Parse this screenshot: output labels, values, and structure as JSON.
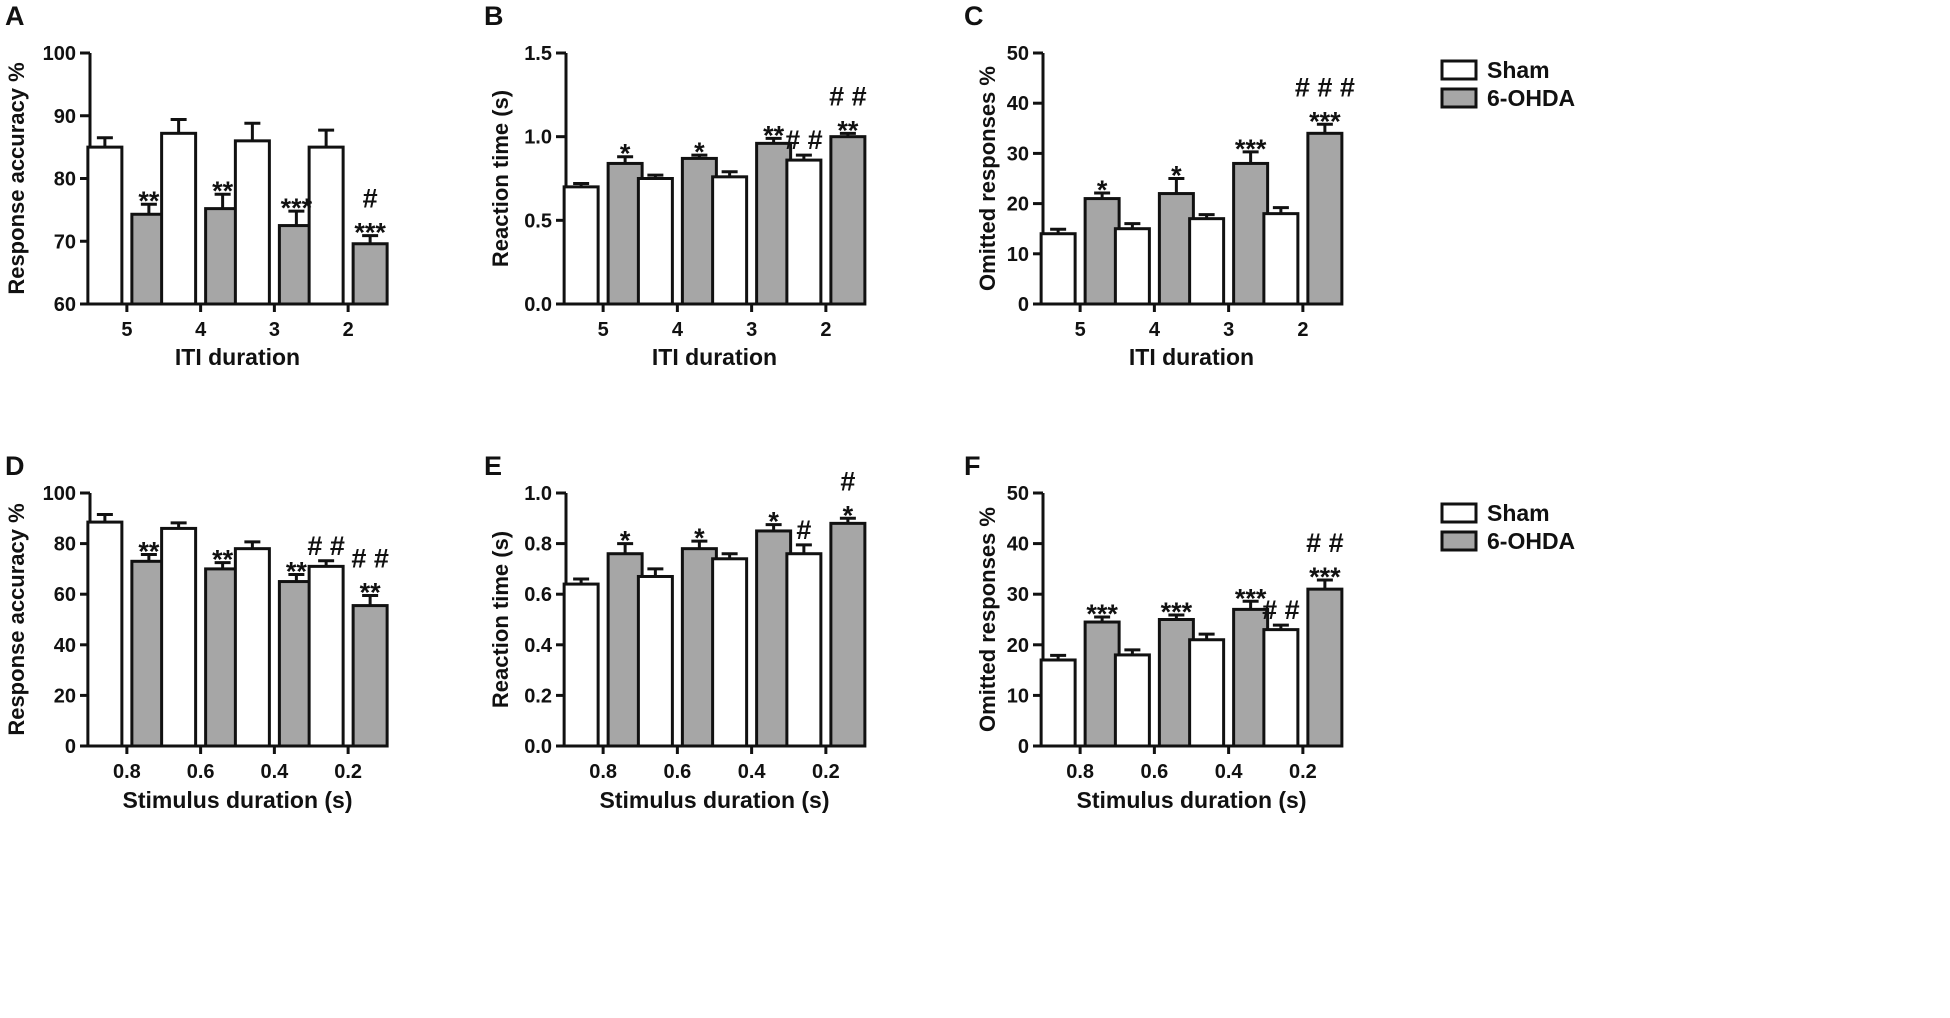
{
  "legend": {
    "items": [
      {
        "name": "Sham",
        "color": "#ffffff"
      },
      {
        "name": "6-OHDA",
        "color": "#a6a6a6"
      }
    ]
  },
  "chart_data": [
    {
      "panel": "A",
      "type": "bar",
      "xlabel": "ITI duration",
      "ylabel": "Response accuracy %",
      "ylim": [
        60,
        100
      ],
      "yticks": [
        "60",
        "70",
        "80",
        "90",
        "100"
      ],
      "categories": [
        "5",
        "4",
        "3",
        "2"
      ],
      "series": [
        {
          "name": "Sham",
          "values": [
            85,
            87.2,
            86,
            85
          ],
          "errors": [
            1.5,
            2.2,
            2.8,
            2.7
          ]
        },
        {
          "name": "6-OHDA",
          "values": [
            74.3,
            75.2,
            72.5,
            69.6
          ],
          "errors": [
            1.6,
            2.3,
            2.3,
            1.3
          ]
        }
      ],
      "annotations": [
        {
          "category": "5",
          "series": "6-OHDA",
          "lines": [
            "**"
          ]
        },
        {
          "category": "4",
          "series": "6-OHDA",
          "lines": [
            "**"
          ]
        },
        {
          "category": "3",
          "series": "6-OHDA",
          "lines": [
            "***"
          ]
        },
        {
          "category": "2",
          "series": "6-OHDA",
          "lines": [
            "#",
            "***"
          ]
        }
      ]
    },
    {
      "panel": "B",
      "type": "bar",
      "xlabel": "ITI duration",
      "ylabel": "Reaction time (s)",
      "ylim": [
        0,
        1.5
      ],
      "yticks": [
        "0.0",
        "0.5",
        "1.0",
        "1.5"
      ],
      "categories": [
        "5",
        "4",
        "3",
        "2"
      ],
      "series": [
        {
          "name": "Sham",
          "values": [
            0.7,
            0.75,
            0.76,
            0.86
          ],
          "errors": [
            0.02,
            0.02,
            0.03,
            0.03
          ]
        },
        {
          "name": "6-OHDA",
          "values": [
            0.84,
            0.87,
            0.96,
            1.0
          ],
          "errors": [
            0.04,
            0.02,
            0.03,
            0.02
          ]
        }
      ],
      "annotations": [
        {
          "category": "5",
          "series": "6-OHDA",
          "lines": [
            "*"
          ]
        },
        {
          "category": "4",
          "series": "6-OHDA",
          "lines": [
            "*"
          ]
        },
        {
          "category": "3",
          "series": "6-OHDA",
          "lines": [
            "**"
          ]
        },
        {
          "category": "2",
          "series": "Sham",
          "lines": [
            "# #"
          ]
        },
        {
          "category": "2",
          "series": "6-OHDA",
          "lines": [
            "# #",
            "**"
          ]
        }
      ]
    },
    {
      "panel": "C",
      "type": "bar",
      "xlabel": "ITI duration",
      "ylabel": "Omitted responses %",
      "ylim": [
        0,
        50
      ],
      "yticks": [
        "0",
        "10",
        "20",
        "30",
        "40",
        "50"
      ],
      "categories": [
        "5",
        "4",
        "3",
        "2"
      ],
      "series": [
        {
          "name": "Sham",
          "values": [
            14,
            15,
            17,
            18
          ],
          "errors": [
            0.9,
            1.0,
            0.8,
            1.2
          ]
        },
        {
          "name": "6-OHDA",
          "values": [
            21,
            22,
            28,
            34
          ],
          "errors": [
            1.1,
            3.0,
            2.3,
            1.8
          ]
        }
      ],
      "annotations": [
        {
          "category": "5",
          "series": "6-OHDA",
          "lines": [
            "*"
          ]
        },
        {
          "category": "4",
          "series": "6-OHDA",
          "lines": [
            "*"
          ]
        },
        {
          "category": "3",
          "series": "6-OHDA",
          "lines": [
            "***"
          ]
        },
        {
          "category": "2",
          "series": "6-OHDA",
          "lines": [
            "# # #",
            "***"
          ]
        }
      ]
    },
    {
      "panel": "D",
      "type": "bar",
      "xlabel": "Stimulus duration (s)",
      "ylabel": "Response accuracy %",
      "ylim": [
        0,
        100
      ],
      "yticks": [
        "0",
        "20",
        "40",
        "60",
        "80",
        "100"
      ],
      "categories": [
        "0.8",
        "0.6",
        "0.4",
        "0.2"
      ],
      "series": [
        {
          "name": "Sham",
          "values": [
            88.5,
            86,
            78,
            71
          ],
          "errors": [
            3.0,
            2.2,
            2.7,
            2.2
          ]
        },
        {
          "name": "6-OHDA",
          "values": [
            73,
            70,
            65,
            55.5
          ],
          "errors": [
            2.7,
            2.5,
            2.8,
            4.0
          ]
        }
      ],
      "annotations": [
        {
          "category": "0.8",
          "series": "6-OHDA",
          "lines": [
            "**"
          ]
        },
        {
          "category": "0.6",
          "series": "6-OHDA",
          "lines": [
            "**"
          ]
        },
        {
          "category": "0.4",
          "series": "6-OHDA",
          "lines": [
            "**"
          ]
        },
        {
          "category": "0.2",
          "series": "Sham",
          "lines": [
            "# #"
          ]
        },
        {
          "category": "0.2",
          "series": "6-OHDA",
          "lines": [
            "# #",
            "**"
          ]
        }
      ]
    },
    {
      "panel": "E",
      "type": "bar",
      "xlabel": "Stimulus duration (s)",
      "ylabel": "Reaction time (s)",
      "ylim": [
        0,
        1.0
      ],
      "yticks": [
        "0.0",
        "0.2",
        "0.4",
        "0.6",
        "0.8",
        "1.0"
      ],
      "categories": [
        "0.8",
        "0.6",
        "0.4",
        "0.2"
      ],
      "series": [
        {
          "name": "Sham",
          "values": [
            0.64,
            0.67,
            0.74,
            0.76
          ],
          "errors": [
            0.02,
            0.03,
            0.02,
            0.035
          ]
        },
        {
          "name": "6-OHDA",
          "values": [
            0.76,
            0.78,
            0.85,
            0.88
          ],
          "errors": [
            0.04,
            0.03,
            0.025,
            0.02
          ]
        }
      ],
      "annotations": [
        {
          "category": "0.8",
          "series": "6-OHDA",
          "lines": [
            "*"
          ]
        },
        {
          "category": "0.6",
          "series": "6-OHDA",
          "lines": [
            "*"
          ]
        },
        {
          "category": "0.4",
          "series": "6-OHDA",
          "lines": [
            "*"
          ]
        },
        {
          "category": "0.2",
          "series": "Sham",
          "lines": [
            "#"
          ]
        },
        {
          "category": "0.2",
          "series": "6-OHDA",
          "lines": [
            "#",
            "*"
          ]
        }
      ]
    },
    {
      "panel": "F",
      "type": "bar",
      "xlabel": "Stimulus duration (s)",
      "ylabel": "Omitted responses %",
      "ylim": [
        0,
        50
      ],
      "yticks": [
        "0",
        "10",
        "20",
        "30",
        "40",
        "50"
      ],
      "categories": [
        "0.8",
        "0.6",
        "0.4",
        "0.2"
      ],
      "series": [
        {
          "name": "Sham",
          "values": [
            17,
            18,
            21,
            23
          ],
          "errors": [
            0.9,
            1.0,
            1.1,
            0.9
          ]
        },
        {
          "name": "6-OHDA",
          "values": [
            24.5,
            25,
            27,
            31
          ],
          "errors": [
            1.0,
            0.9,
            1.6,
            1.8
          ]
        }
      ],
      "annotations": [
        {
          "category": "0.8",
          "series": "6-OHDA",
          "lines": [
            "***"
          ]
        },
        {
          "category": "0.6",
          "series": "6-OHDA",
          "lines": [
            "***"
          ]
        },
        {
          "category": "0.4",
          "series": "6-OHDA",
          "lines": [
            "***"
          ]
        },
        {
          "category": "0.2",
          "series": "Sham",
          "lines": [
            "# #"
          ]
        },
        {
          "category": "0.2",
          "series": "6-OHDA",
          "lines": [
            "# #",
            "***"
          ]
        }
      ]
    }
  ]
}
